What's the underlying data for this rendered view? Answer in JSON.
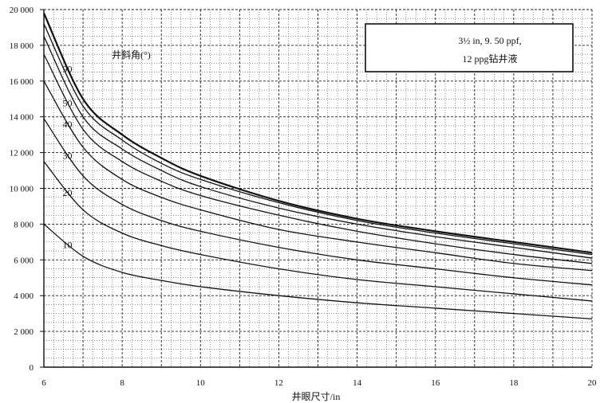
{
  "chart_data": {
    "type": "line",
    "title": "",
    "xlabel": "井眼尺寸/in",
    "ylabel": "",
    "xlim": [
      6,
      20
    ],
    "ylim": [
      0,
      20000
    ],
    "x_ticks": [
      "6",
      "8",
      "10",
      "12",
      "14",
      "16",
      "18",
      "20"
    ],
    "y_ticks": [
      "0",
      "2 000",
      "4 000",
      "6 000",
      "8 000",
      "10 000",
      "12 000",
      "14 000",
      "16 000",
      "18 000",
      "20 000"
    ],
    "grid": true,
    "legend_box": {
      "line1": "3½ in, 9. 50 ppf,",
      "line2": "12 ppg钻井液",
      "placement": "top-right"
    },
    "annotation_title": "井斜角(°)",
    "x": [
      6,
      7,
      8,
      9,
      10,
      12,
      14,
      16,
      18,
      20
    ],
    "series": [
      {
        "label": "10",
        "values": [
          8000,
          6200,
          5300,
          4850,
          4500,
          4000,
          3600,
          3300,
          3000,
          2700
        ]
      },
      {
        "label": "20",
        "values": [
          11500,
          8800,
          7500,
          6800,
          6300,
          5500,
          4900,
          4500,
          4100,
          3700
        ]
      },
      {
        "label": "30",
        "values": [
          13900,
          10700,
          9100,
          8200,
          7600,
          6700,
          6000,
          5500,
          5000,
          4600
        ]
      },
      {
        "label": "40",
        "values": [
          16000,
          12300,
          10500,
          9500,
          8800,
          7700,
          7000,
          6400,
          5800,
          5400
        ]
      },
      {
        "label": "50",
        "values": [
          17500,
          13300,
          11500,
          10400,
          9600,
          8500,
          7600,
          6900,
          6300,
          5800
        ]
      },
      {
        "label": "",
        "values": [
          18500,
          14000,
          12200,
          11000,
          10100,
          8900,
          8000,
          7300,
          6700,
          6100
        ]
      },
      {
        "label": "",
        "values": [
          19200,
          14600,
          12700,
          11400,
          10500,
          9200,
          8200,
          7500,
          6900,
          6300
        ]
      },
      {
        "label": "90",
        "values": [
          19800,
          15000,
          13000,
          11700,
          10700,
          9300,
          8300,
          7600,
          7000,
          6400
        ]
      }
    ]
  }
}
